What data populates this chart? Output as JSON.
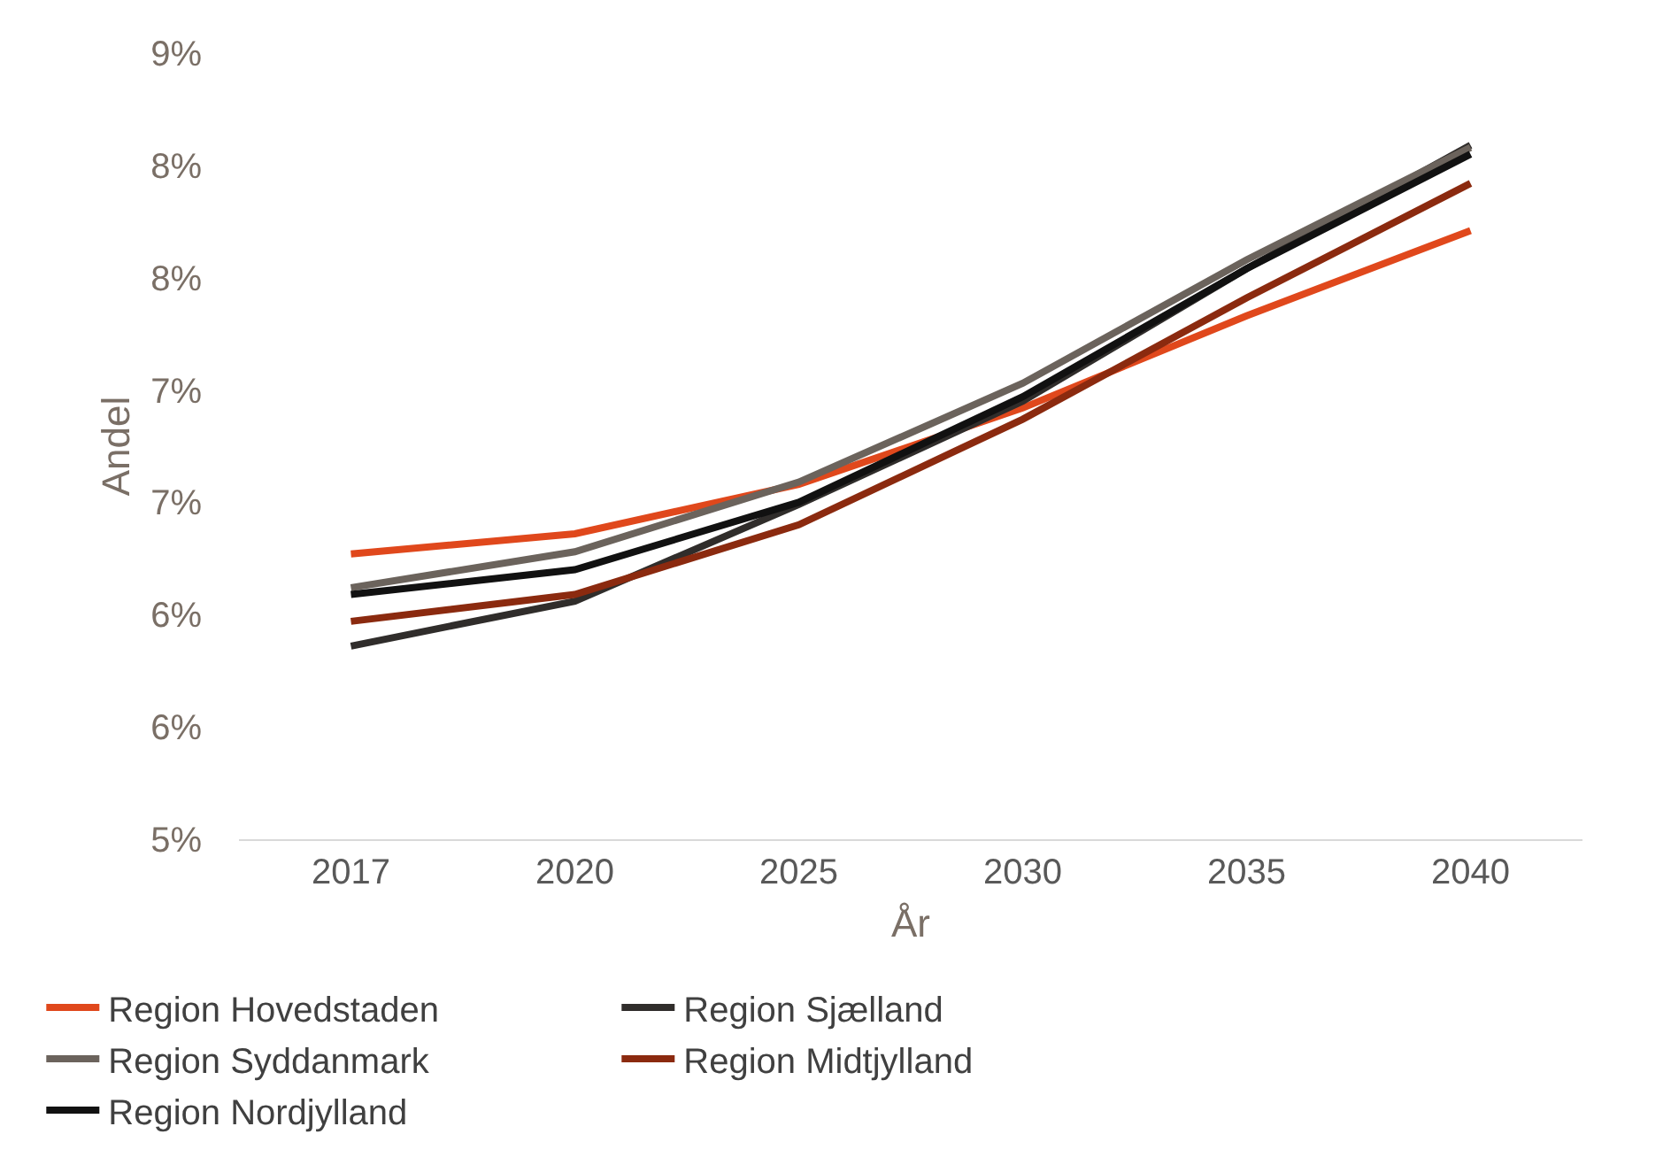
{
  "chart_data": {
    "type": "line",
    "xlabel": "År",
    "ylabel": "Andel",
    "categories": [
      "2017",
      "2020",
      "2025",
      "2030",
      "2035",
      "2040"
    ],
    "ylim": [
      5,
      8.5
    ],
    "yticks": [
      {
        "value": 5,
        "label": "5%"
      },
      {
        "value": 5.5,
        "label": "6%"
      },
      {
        "value": 6,
        "label": "6%"
      },
      {
        "value": 6.5,
        "label": "7%"
      },
      {
        "value": 7,
        "label": "7%"
      },
      {
        "value": 7.5,
        "label": "8%"
      },
      {
        "value": 8,
        "label": "8%"
      },
      {
        "value": 8.5,
        "label": "9%"
      }
    ],
    "legend": "bottom",
    "marker": "none",
    "line_style": "solid",
    "series": [
      {
        "name": "Region Hovedstaden",
        "color": "#e0481c",
        "values": [
          6.27,
          6.36,
          6.58,
          6.92,
          7.33,
          7.71
        ]
      },
      {
        "name": "Region Sjælland",
        "color": "#302d2b",
        "values": [
          5.86,
          6.06,
          6.49,
          6.95,
          7.54,
          8.09
        ]
      },
      {
        "name": "Region Syddanmark",
        "color": "#6b635c",
        "values": [
          6.12,
          6.28,
          6.59,
          7.03,
          7.58,
          8.08
        ]
      },
      {
        "name": "Region Midtjylland",
        "color": "#8b2a0f",
        "values": [
          5.97,
          6.09,
          6.4,
          6.87,
          7.41,
          7.92
        ]
      },
      {
        "name": "Region Nordjylland",
        "color": "#111111",
        "values": [
          6.09,
          6.2,
          6.5,
          6.97,
          7.54,
          8.05
        ]
      }
    ]
  }
}
